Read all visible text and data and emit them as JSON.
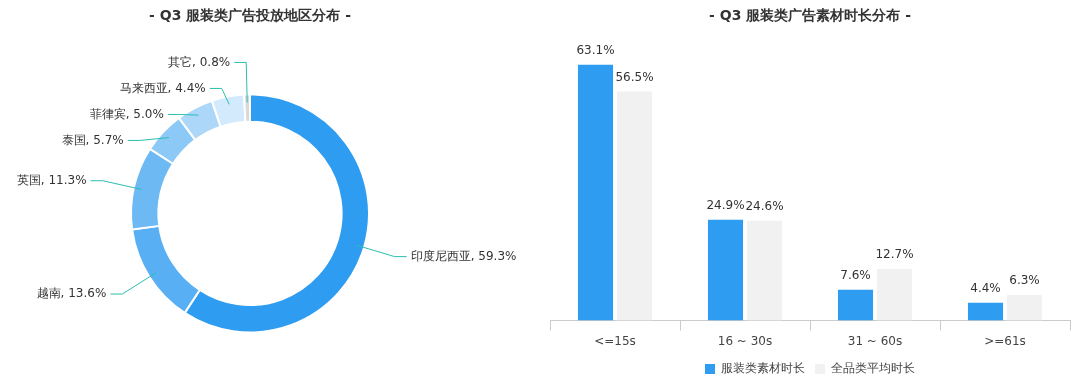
{
  "chart_data": [
    {
      "type": "donut",
      "title": "- Q3 服装类广告投放地区分布 -",
      "categories": [
        "印度尼西亚",
        "越南",
        "英国",
        "泰国",
        "菲律宾",
        "马来西亚",
        "其它"
      ],
      "values": [
        59.3,
        13.6,
        11.3,
        5.7,
        5.0,
        4.4,
        0.8
      ],
      "value_labels": [
        "59.3%",
        "13.6%",
        "11.3%",
        "5.7%",
        "5.0%",
        "4.4%",
        "0.8%"
      ],
      "colors": [
        "#2e9cf0",
        "#58aff3",
        "#6cb9f4",
        "#8dc9f7",
        "#acd7f9",
        "#d3e9fc",
        "#d9d9d9"
      ],
      "legend": false
    },
    {
      "type": "bar",
      "title": "- Q3 服装类广告素材时长分布 -",
      "categories": [
        "<=15s",
        "16 ~ 30s",
        "31 ~ 60s",
        ">=61s"
      ],
      "series": [
        {
          "name": "服装类素材时长",
          "color": "#2e9cf0",
          "values": [
            63.1,
            24.9,
            7.6,
            4.4
          ],
          "value_labels": [
            "63.1%",
            "24.9%",
            "7.6%",
            "4.4%"
          ]
        },
        {
          "name": "全品类平均时长",
          "color": "#f1f1f1",
          "values": [
            56.5,
            24.6,
            12.7,
            6.3
          ],
          "value_labels": [
            "56.5%",
            "24.6%",
            "12.7%",
            "6.3%"
          ]
        }
      ],
      "legend": "bottom",
      "grid": false
    }
  ]
}
